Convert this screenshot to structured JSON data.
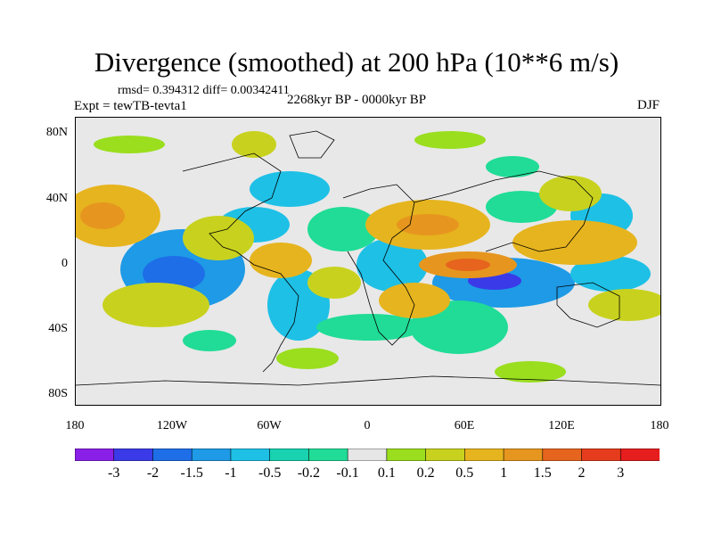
{
  "title": "Divergence (smoothed) at 200 hPa (10**6 m/s)",
  "stats": "rmsd= 0.394312 diff= 0.00342411",
  "experiment": "Expt = tewTB-tevta1",
  "period": "2268kyr BP - 0000kyr BP",
  "season": "DJF",
  "lat_ticks": [
    "80N",
    "40N",
    "0",
    "40S",
    "80S"
  ],
  "lon_ticks": [
    "180",
    "120W",
    "60W",
    "0",
    "60E",
    "120E",
    "180"
  ],
  "colorbar": {
    "labels": [
      "-3",
      "-2",
      "-1.5",
      "-1",
      "-0.5",
      "-0.2",
      "-0.1",
      "0.1",
      "0.2",
      "0.5",
      "1",
      "1.5",
      "2",
      "3"
    ],
    "colors": [
      "#8a1fe8",
      "#3a3ae8",
      "#1e6ee8",
      "#1e9ae6",
      "#1ec0e6",
      "#18d2b0",
      "#20dc96",
      "#e6e6e6",
      "#9ade1e",
      "#c8d21e",
      "#e6b41e",
      "#e6961e",
      "#e6641e",
      "#e63c1e",
      "#e61e1e"
    ]
  }
}
